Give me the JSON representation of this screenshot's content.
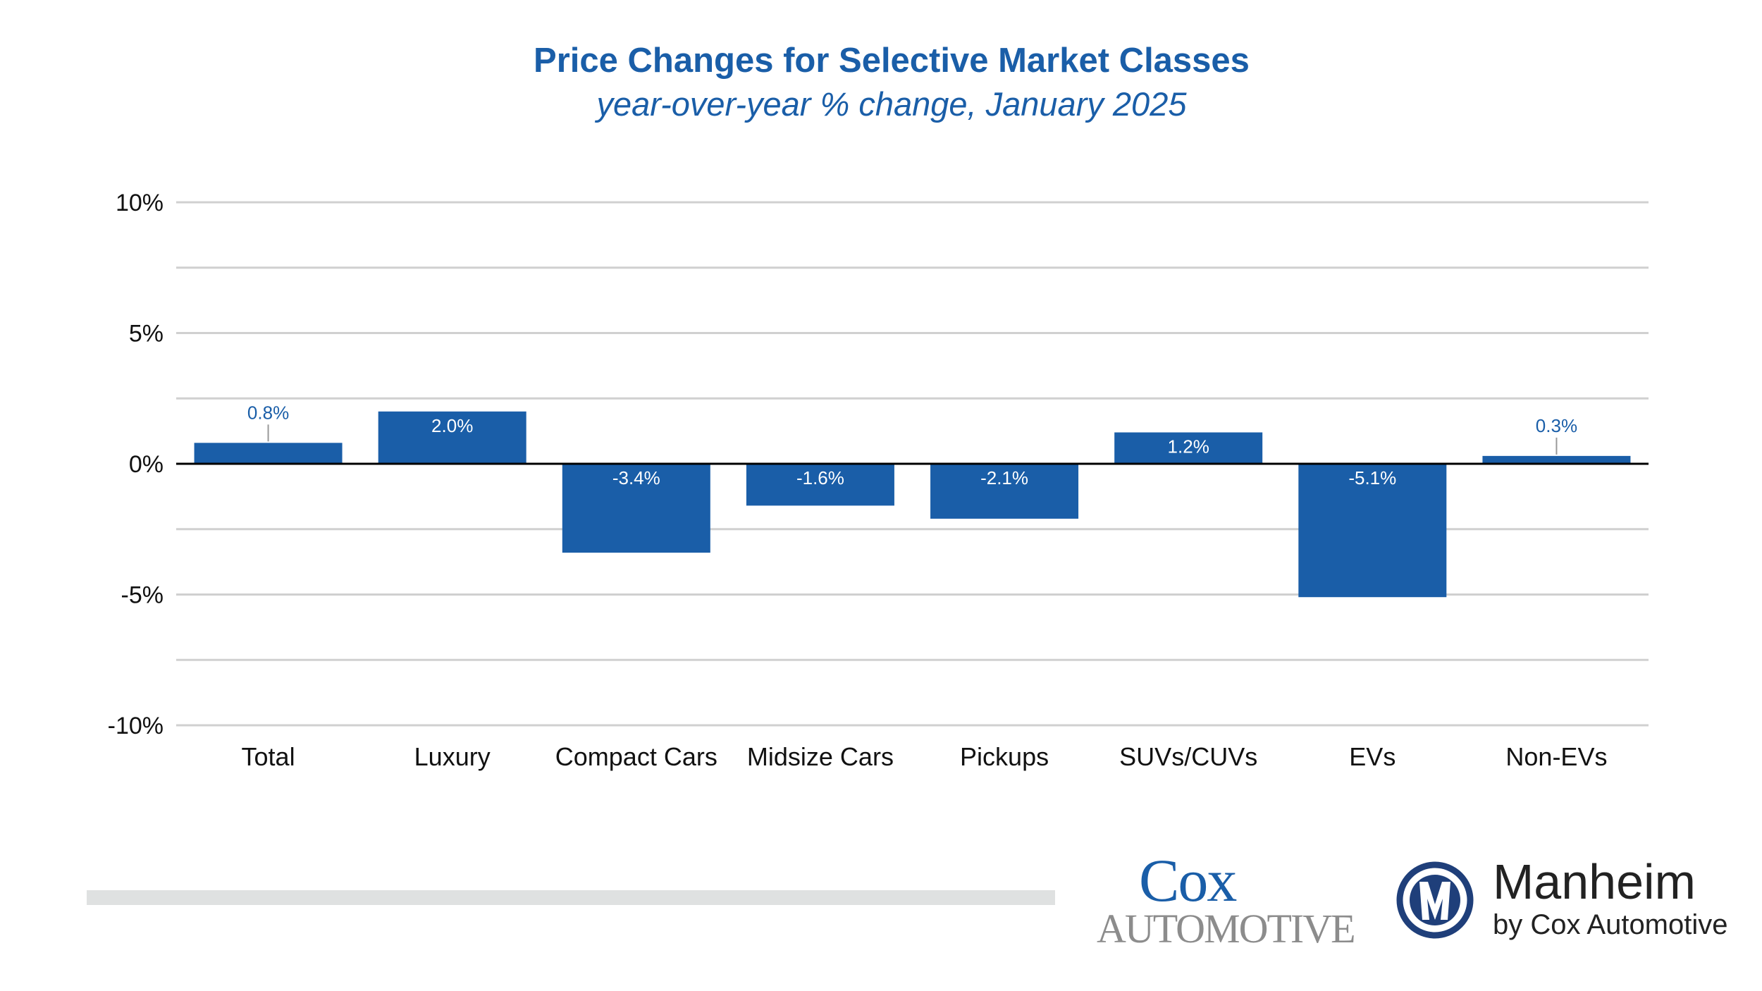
{
  "chart_data": {
    "type": "bar",
    "title": "Price Changes for Selective Market Classes",
    "subtitle": "year-over-year % change, January 2025",
    "categories": [
      "Total",
      "Luxury",
      "Compact Cars",
      "Midsize Cars",
      "Pickups",
      "SUVs/CUVs",
      "EVs",
      "Non-EVs"
    ],
    "values": [
      0.8,
      2.0,
      -3.4,
      -1.6,
      -2.1,
      1.2,
      -5.1,
      0.3
    ],
    "data_labels": [
      "0.8%",
      "2.0%",
      "-3.4%",
      "-1.6%",
      "-2.1%",
      "1.2%",
      "-5.1%",
      "0.3%"
    ],
    "ylim": [
      -10,
      10
    ],
    "yticks": [
      10,
      5,
      0,
      -5,
      -10
    ],
    "ytick_labels": [
      "10%",
      "5%",
      "0%",
      "-5%",
      "-10%"
    ],
    "grid": true,
    "bar_color": "#1a5ea8"
  },
  "footer": {
    "cox_logo": {
      "line1": "Cox",
      "line2": "Automotive"
    },
    "manheim_logo": {
      "name": "Manheim",
      "tagline": "by Cox Automotive"
    }
  }
}
